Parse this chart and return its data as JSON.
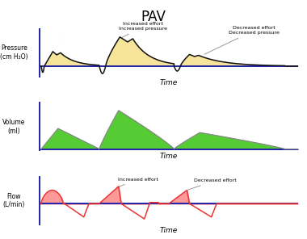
{
  "title": "PAV",
  "title_fontsize": 12,
  "background_color": "#ffffff",
  "panel_labels": {
    "pressure_ylabel": "Pressure\n(cm H₂O)",
    "volume_ylabel": "Volume\n(ml)",
    "flow_ylabel": "Flow\n(L/min)"
  },
  "time_label": "Time",
  "annotations": {
    "pressure": {
      "increased": "Increased effort\nIncreased pressure",
      "decreased": "Decreased effort\nDecreased pressure"
    },
    "flow": {
      "increased": "Increased effort",
      "decreased": "Decreased effort"
    }
  },
  "colors": {
    "pressure_fill": "#F5E49A",
    "pressure_line": "#111111",
    "volume_fill": "#55CC33",
    "volume_line": "#888888",
    "flow_fill": "#FF9999",
    "flow_line": "#EE3333",
    "baseline": "#2222AA",
    "axis_line": "#2222AA",
    "annotation_line": "#999999"
  }
}
